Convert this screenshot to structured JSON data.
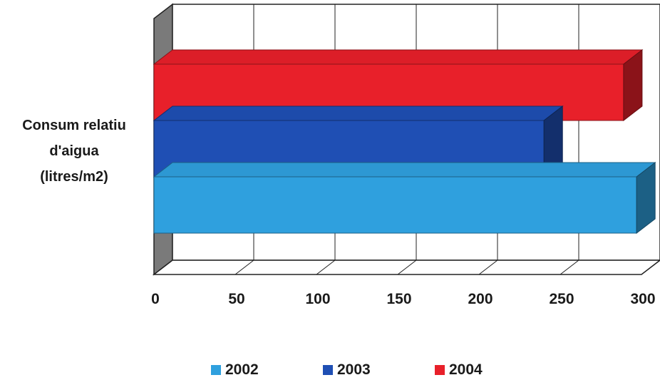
{
  "chart_data": {
    "type": "bar",
    "orientation": "horizontal",
    "three_d": true,
    "categories": [
      "Consum relatiu d'aigua (litres/m2)"
    ],
    "category_label_lines": [
      "Consum relatiu",
      "d'aigua",
      "(litres/m2)"
    ],
    "series": [
      {
        "name": "2002",
        "values": [
          297
        ],
        "color": "#2fa0de"
      },
      {
        "name": "2003",
        "values": [
          240
        ],
        "color": "#1f4fb4"
      },
      {
        "name": "2004",
        "values": [
          289
        ],
        "color": "#e8202a"
      }
    ],
    "xlim": [
      0,
      300
    ],
    "xticks": [
      "0",
      "50",
      "100",
      "150",
      "200",
      "250",
      "300"
    ],
    "grid": true,
    "legend": "bottom"
  }
}
